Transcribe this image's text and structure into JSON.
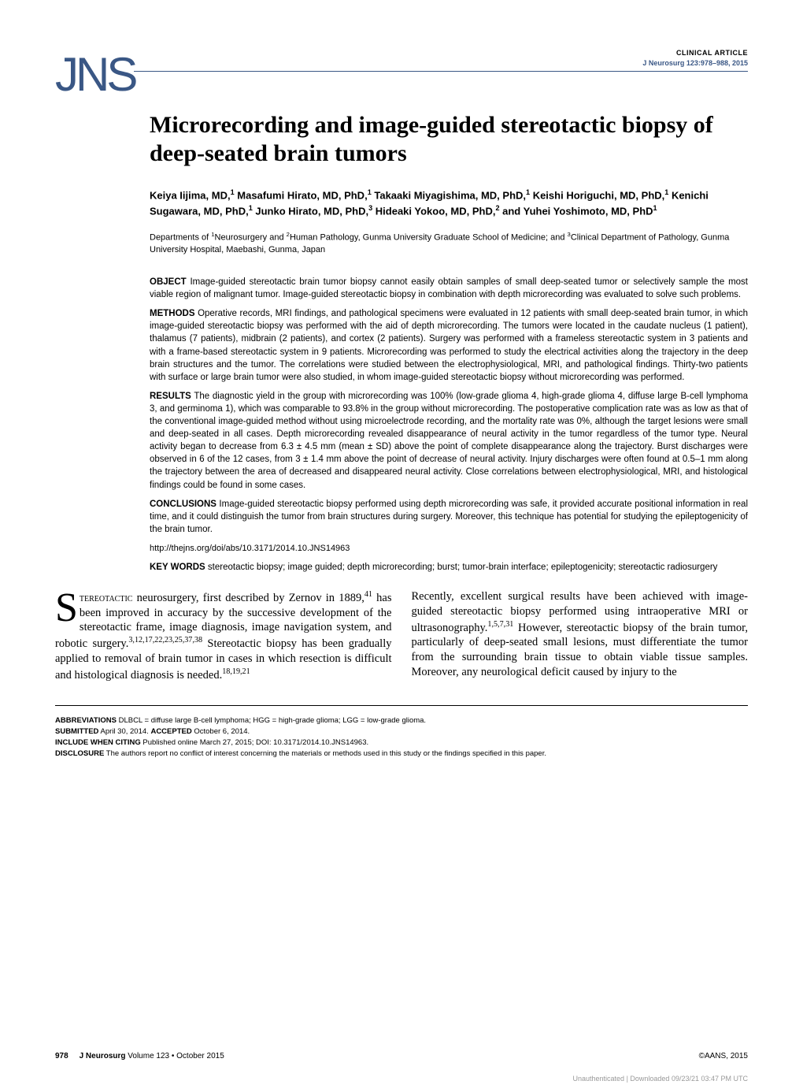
{
  "header": {
    "logo_text": "JNS",
    "article_type": "CLINICAL ARTICLE",
    "journal_ref": "J Neurosurg 123:978–988, 2015"
  },
  "title": "Microrecording and image-guided stereotactic biopsy of deep-seated brain tumors",
  "authors_html": "Keiya Iijima, MD,<sup>1</sup> Masafumi Hirato, MD, PhD,<sup>1</sup> Takaaki Miyagishima, MD, PhD,<sup>1</sup> Keishi Horiguchi, MD, PhD,<sup>1</sup> Kenichi Sugawara, MD, PhD,<sup>1</sup> Junko Hirato, MD, PhD,<sup>3</sup> Hideaki Yokoo, MD, PhD,<sup>2</sup> and Yuhei Yoshimoto, MD, PhD<sup>1</sup>",
  "affiliations_html": "Departments of <sup>1</sup>Neurosurgery and <sup>2</sup>Human Pathology, Gunma University Graduate School of Medicine; and <sup>3</sup>Clinical Department of Pathology, Gunma University Hospital, Maebashi, Gunma, Japan",
  "abstract": {
    "object": {
      "label": "OBJECT",
      "text": " Image-guided stereotactic brain tumor biopsy cannot easily obtain samples of small deep-seated tumor or selectively sample the most viable region of malignant tumor. Image-guided stereotactic biopsy in combination with depth microrecording was evaluated to solve such problems."
    },
    "methods": {
      "label": "METHODS",
      "text": " Operative records, MRI findings, and pathological specimens were evaluated in 12 patients with small deep-seated brain tumor, in which image-guided stereotactic biopsy was performed with the aid of depth microrecording. The tumors were located in the caudate nucleus (1 patient), thalamus (7 patients), midbrain (2 patients), and cortex (2 patients). Surgery was performed with a frameless stereotactic system in 3 patients and with a frame-based stereotactic system in 9 patients. Microrecording was performed to study the electrical activities along the trajectory in the deep brain structures and the tumor. The correlations were studied between the electrophysiological, MRI, and pathological findings. Thirty-two patients with surface or large brain tumor were also studied, in whom image-guided stereotactic biopsy without microrecording was performed."
    },
    "results": {
      "label": "RESULTS",
      "text": " The diagnostic yield in the group with microrecording was 100% (low-grade glioma 4, high-grade glioma 4, diffuse large B-cell lymphoma 3, and germinoma 1), which was comparable to 93.8% in the group without microrecording. The postoperative complication rate was as low as that of the conventional image-guided method without using microelectrode recording, and the mortality rate was 0%, although the target lesions were small and deep-seated in all cases. Depth microrecording revealed disappearance of neural activity in the tumor regardless of the tumor type. Neural activity began to decrease from 6.3 ± 4.5 mm (mean ± SD) above the point of complete disappearance along the trajectory. Burst discharges were observed in 6 of the 12 cases, from 3 ± 1.4 mm above the point of decrease of neural activity. Injury discharges were often found at 0.5–1 mm along the trajectory between the area of decreased and disappeared neural activity. Close correlations between electrophysiological, MRI, and histological findings could be found in some cases."
    },
    "conclusions": {
      "label": "CONCLUSIONS",
      "text": " Image-guided stereotactic biopsy performed using depth microrecording was safe, it provided accurate positional information in real time, and it could distinguish the tumor from brain structures during surgery. Moreover, this technique has potential for studying the epileptogenicity of the brain tumor."
    }
  },
  "doi_link": "http://thejns.org/doi/abs/10.3171/2014.10.JNS14963",
  "keywords": {
    "label": "KEY WORDS",
    "text": " stereotactic biopsy; image guided; depth microrecording; burst; tumor-brain interface; epileptogenicity; stereotactic radiosurgery"
  },
  "body": {
    "col1_html": "<span class=\"dropcap\">S</span><span class=\"smallcaps\">tereotactic</span> neurosurgery, first described by Zernov in 1889,<sup>41</sup> has been improved in accuracy by the successive development of the stereotactic frame, image diagnosis, image navigation system, and robotic surgery.<sup>3,12,17,22,23,25,37,38</sup> Stereotactic biopsy has been gradually applied to removal of brain tumor in cases in which resection is difficult and histological diagnosis is needed.<sup>18,19,21</sup>",
    "col2_html": "Recently, excellent surgical results have been achieved with image-guided stereotactic biopsy performed using intraoperative MRI or ultrasonography.<sup>1,5,7,31</sup> However, stereotactic biopsy of the brain tumor, particularly of deep-seated small lesions, must differentiate the tumor from the surrounding brain tissue to obtain viable tissue samples. Moreover, any neurological deficit caused by injury to the"
  },
  "bottom_meta": {
    "abbreviations": {
      "label": "ABBREVIATIONS",
      "text": " DLBCL = diffuse large B-cell lymphoma; HGG = high-grade glioma; LGG = low-grade glioma."
    },
    "submitted": {
      "label": "SUBMITTED",
      "text": " April 30, 2014. ",
      "label2": "ACCEPTED",
      "text2": " October 6, 2014."
    },
    "citing": {
      "label": "INCLUDE WHEN CITING",
      "text": " Published online March 27, 2015; DOI: 10.3171/2014.10.JNS14963."
    },
    "disclosure": {
      "label": "DISCLOSURE",
      "text": " The authors report no conflict of interest concerning the materials or methods used in this study or the findings specified in this paper."
    }
  },
  "footer": {
    "page_num": "978",
    "journal_issue": "J Neurosurg Volume 123 • October 2015",
    "copyright": "©AANS, 2015"
  },
  "watermark": "Unauthenticated | Downloaded 09/23/21 03:47 PM UTC",
  "colors": {
    "accent": "#3a5785",
    "text": "#000000",
    "background": "#ffffff",
    "watermark": "#999999"
  }
}
